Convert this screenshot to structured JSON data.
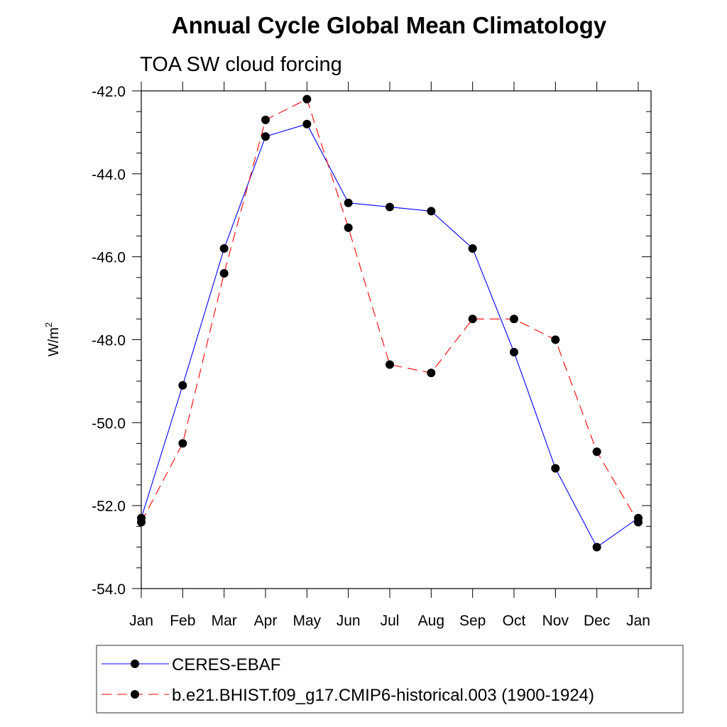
{
  "chart_data": {
    "type": "line",
    "title": "Annual Cycle Global Mean Climatology",
    "subtitle": "TOA SW cloud forcing",
    "ylabel": "W/m",
    "ylabel_superscript": "2",
    "xlabel": "",
    "categories": [
      "Jan",
      "Feb",
      "Mar",
      "Apr",
      "May",
      "Jun",
      "Jul",
      "Aug",
      "Sep",
      "Oct",
      "Nov",
      "Dec",
      "Jan"
    ],
    "ylim": [
      -54,
      -42
    ],
    "yticks": [
      "-42.0",
      "-44.0",
      "-46.0",
      "-48.0",
      "-50.0",
      "-52.0",
      "-54.0"
    ],
    "grid": false,
    "legend_position": "bottom",
    "series": [
      {
        "name": "CERES-EBAF",
        "color": "#0000ff",
        "dash": "solid",
        "values": [
          -52.3,
          -49.1,
          -45.8,
          -43.1,
          -42.8,
          -44.7,
          -44.8,
          -44.9,
          -45.8,
          -48.3,
          -51.1,
          -53.0,
          -52.3
        ]
      },
      {
        "name": "b.e21.BHIST.f09_g17.CMIP6-historical.003 (1900-1924)",
        "color": "#ff0000",
        "dash": "dashed",
        "values": [
          -52.4,
          -50.5,
          -46.4,
          -42.7,
          -42.2,
          -45.3,
          -48.6,
          -48.8,
          -47.5,
          -47.5,
          -48.0,
          -50.7,
          -52.4
        ]
      }
    ]
  }
}
